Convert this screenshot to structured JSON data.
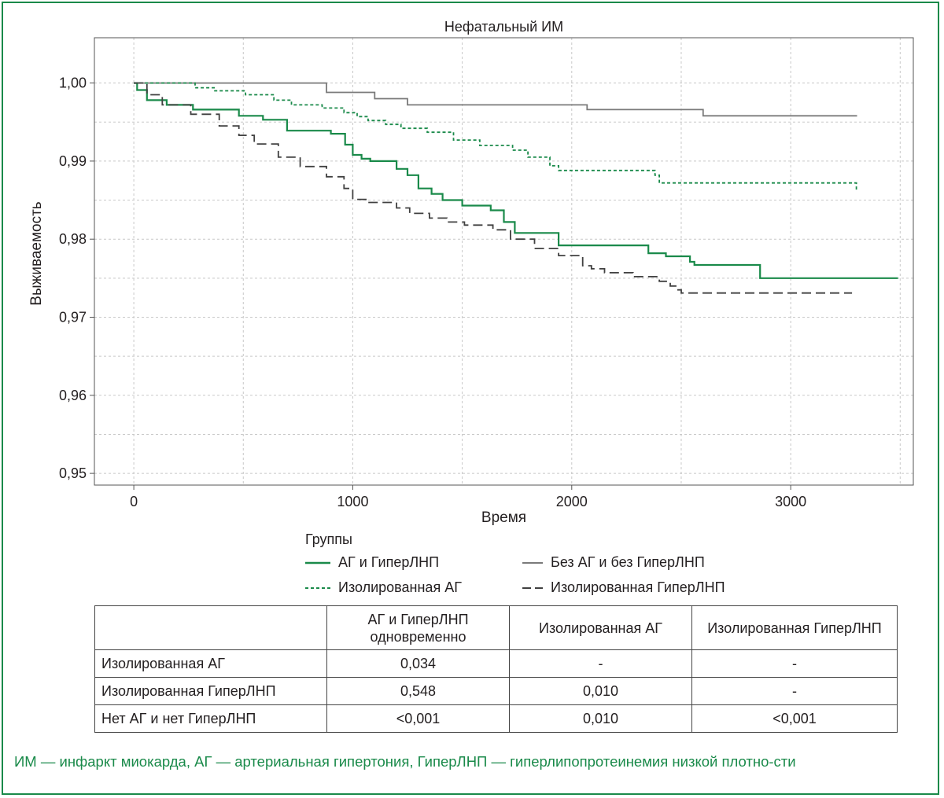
{
  "colors": {
    "border": "#1a8a4a",
    "green": "#1a8a4a",
    "gray": "#7a7a7a",
    "dark": "#404040"
  },
  "chart_data": {
    "type": "line",
    "title": "Нефатальный ИМ",
    "xlabel": "Время",
    "ylabel": "Выживаемость",
    "xlim": [
      -180,
      3560
    ],
    "ylim": [
      0.9485,
      1.0058
    ],
    "xticks": [
      "0",
      "1000",
      "2000",
      "3000"
    ],
    "xtick_values": [
      0,
      1000,
      2000,
      3000
    ],
    "yticks": [
      "1,00",
      "0,99",
      "0,98",
      "0,97",
      "0,96",
      "0,95"
    ],
    "ytick_values": [
      1.0,
      0.99,
      0.98,
      0.97,
      0.96,
      0.95
    ],
    "grid": true,
    "step": true,
    "series": [
      {
        "name": "АГ и ГиперЛНП",
        "color": "#1a8a4a",
        "dash": "solid",
        "x": [
          0,
          15,
          60,
          150,
          270,
          480,
          590,
          700,
          900,
          965,
          1000,
          1040,
          1080,
          1200,
          1250,
          1300,
          1360,
          1410,
          1500,
          1630,
          1690,
          1740,
          1940,
          2350,
          2430,
          2540,
          2560,
          2860,
          3490
        ],
        "y": [
          1.0,
          0.9991,
          0.9978,
          0.9972,
          0.9966,
          0.9958,
          0.9953,
          0.9939,
          0.9935,
          0.9921,
          0.9908,
          0.9903,
          0.99,
          0.989,
          0.9882,
          0.9865,
          0.9858,
          0.985,
          0.9843,
          0.9837,
          0.9822,
          0.9808,
          0.9792,
          0.9782,
          0.9778,
          0.9771,
          0.9767,
          0.975,
          0.975
        ]
      },
      {
        "name": "Без АГ и без ГиперЛНП",
        "color": "#7a7a7a",
        "dash": "solid",
        "x": [
          0,
          880,
          1100,
          1250,
          2070,
          2600,
          3300
        ],
        "y": [
          1.0,
          0.9988,
          0.998,
          0.9972,
          0.9966,
          0.9958,
          0.9957
        ]
      },
      {
        "name": "Изолированная АГ",
        "color": "#1a8a4a",
        "dash": "4,3",
        "x": [
          0,
          280,
          370,
          510,
          640,
          720,
          860,
          960,
          1020,
          1070,
          1150,
          1220,
          1340,
          1460,
          1580,
          1730,
          1800,
          1900,
          1940,
          2380,
          2400,
          3300
        ],
        "y": [
          1.0,
          0.9994,
          0.999,
          0.9985,
          0.9978,
          0.9972,
          0.9968,
          0.9962,
          0.9957,
          0.9952,
          0.9947,
          0.9942,
          0.9937,
          0.9927,
          0.992,
          0.9914,
          0.9905,
          0.9894,
          0.9888,
          0.9882,
          0.9872,
          0.9862
        ]
      },
      {
        "name": "Изолированная ГиперЛНП",
        "color": "#404040",
        "dash": "12,6",
        "x": [
          0,
          60,
          130,
          260,
          390,
          480,
          550,
          660,
          760,
          880,
          960,
          1000,
          1060,
          1200,
          1260,
          1350,
          1430,
          1510,
          1640,
          1720,
          1830,
          1940,
          2050,
          2090,
          2150,
          2280,
          2400,
          2450,
          2480,
          2500,
          3280
        ],
        "y": [
          1.0,
          0.9985,
          0.9972,
          0.996,
          0.9945,
          0.9933,
          0.9922,
          0.9905,
          0.9893,
          0.988,
          0.9865,
          0.9851,
          0.9847,
          0.984,
          0.9833,
          0.9827,
          0.9822,
          0.9818,
          0.9812,
          0.98,
          0.9788,
          0.9779,
          0.9766,
          0.9762,
          0.9757,
          0.9752,
          0.9746,
          0.974,
          0.9735,
          0.9731,
          0.9731
        ]
      }
    ]
  },
  "legend": {
    "title": "Группы",
    "items": [
      "АГ и ГиперЛНП",
      "Без АГ и без ГиперЛНП",
      "Изолированная АГ",
      "Изолированная ГиперЛНП"
    ]
  },
  "table": {
    "headers": [
      "АГ и ГиперЛНП одновременно",
      "Изолированная АГ",
      "Изолированная ГиперЛНП"
    ],
    "rows": [
      {
        "label": "Изолированная АГ",
        "cells": [
          "0,034",
          "-",
          "-"
        ]
      },
      {
        "label": "Изолированная ГиперЛНП",
        "cells": [
          "0,548",
          "0,010",
          "-"
        ]
      },
      {
        "label": "Нет АГ и нет ГиперЛНП",
        "cells": [
          "<0,001",
          "0,010",
          "<0,001"
        ]
      }
    ]
  },
  "footnote": "ИМ — инфаркт миокарда, АГ — артериальная гипертония, ГиперЛНП — гиперлипопротеинемия низкой плотно-сти"
}
